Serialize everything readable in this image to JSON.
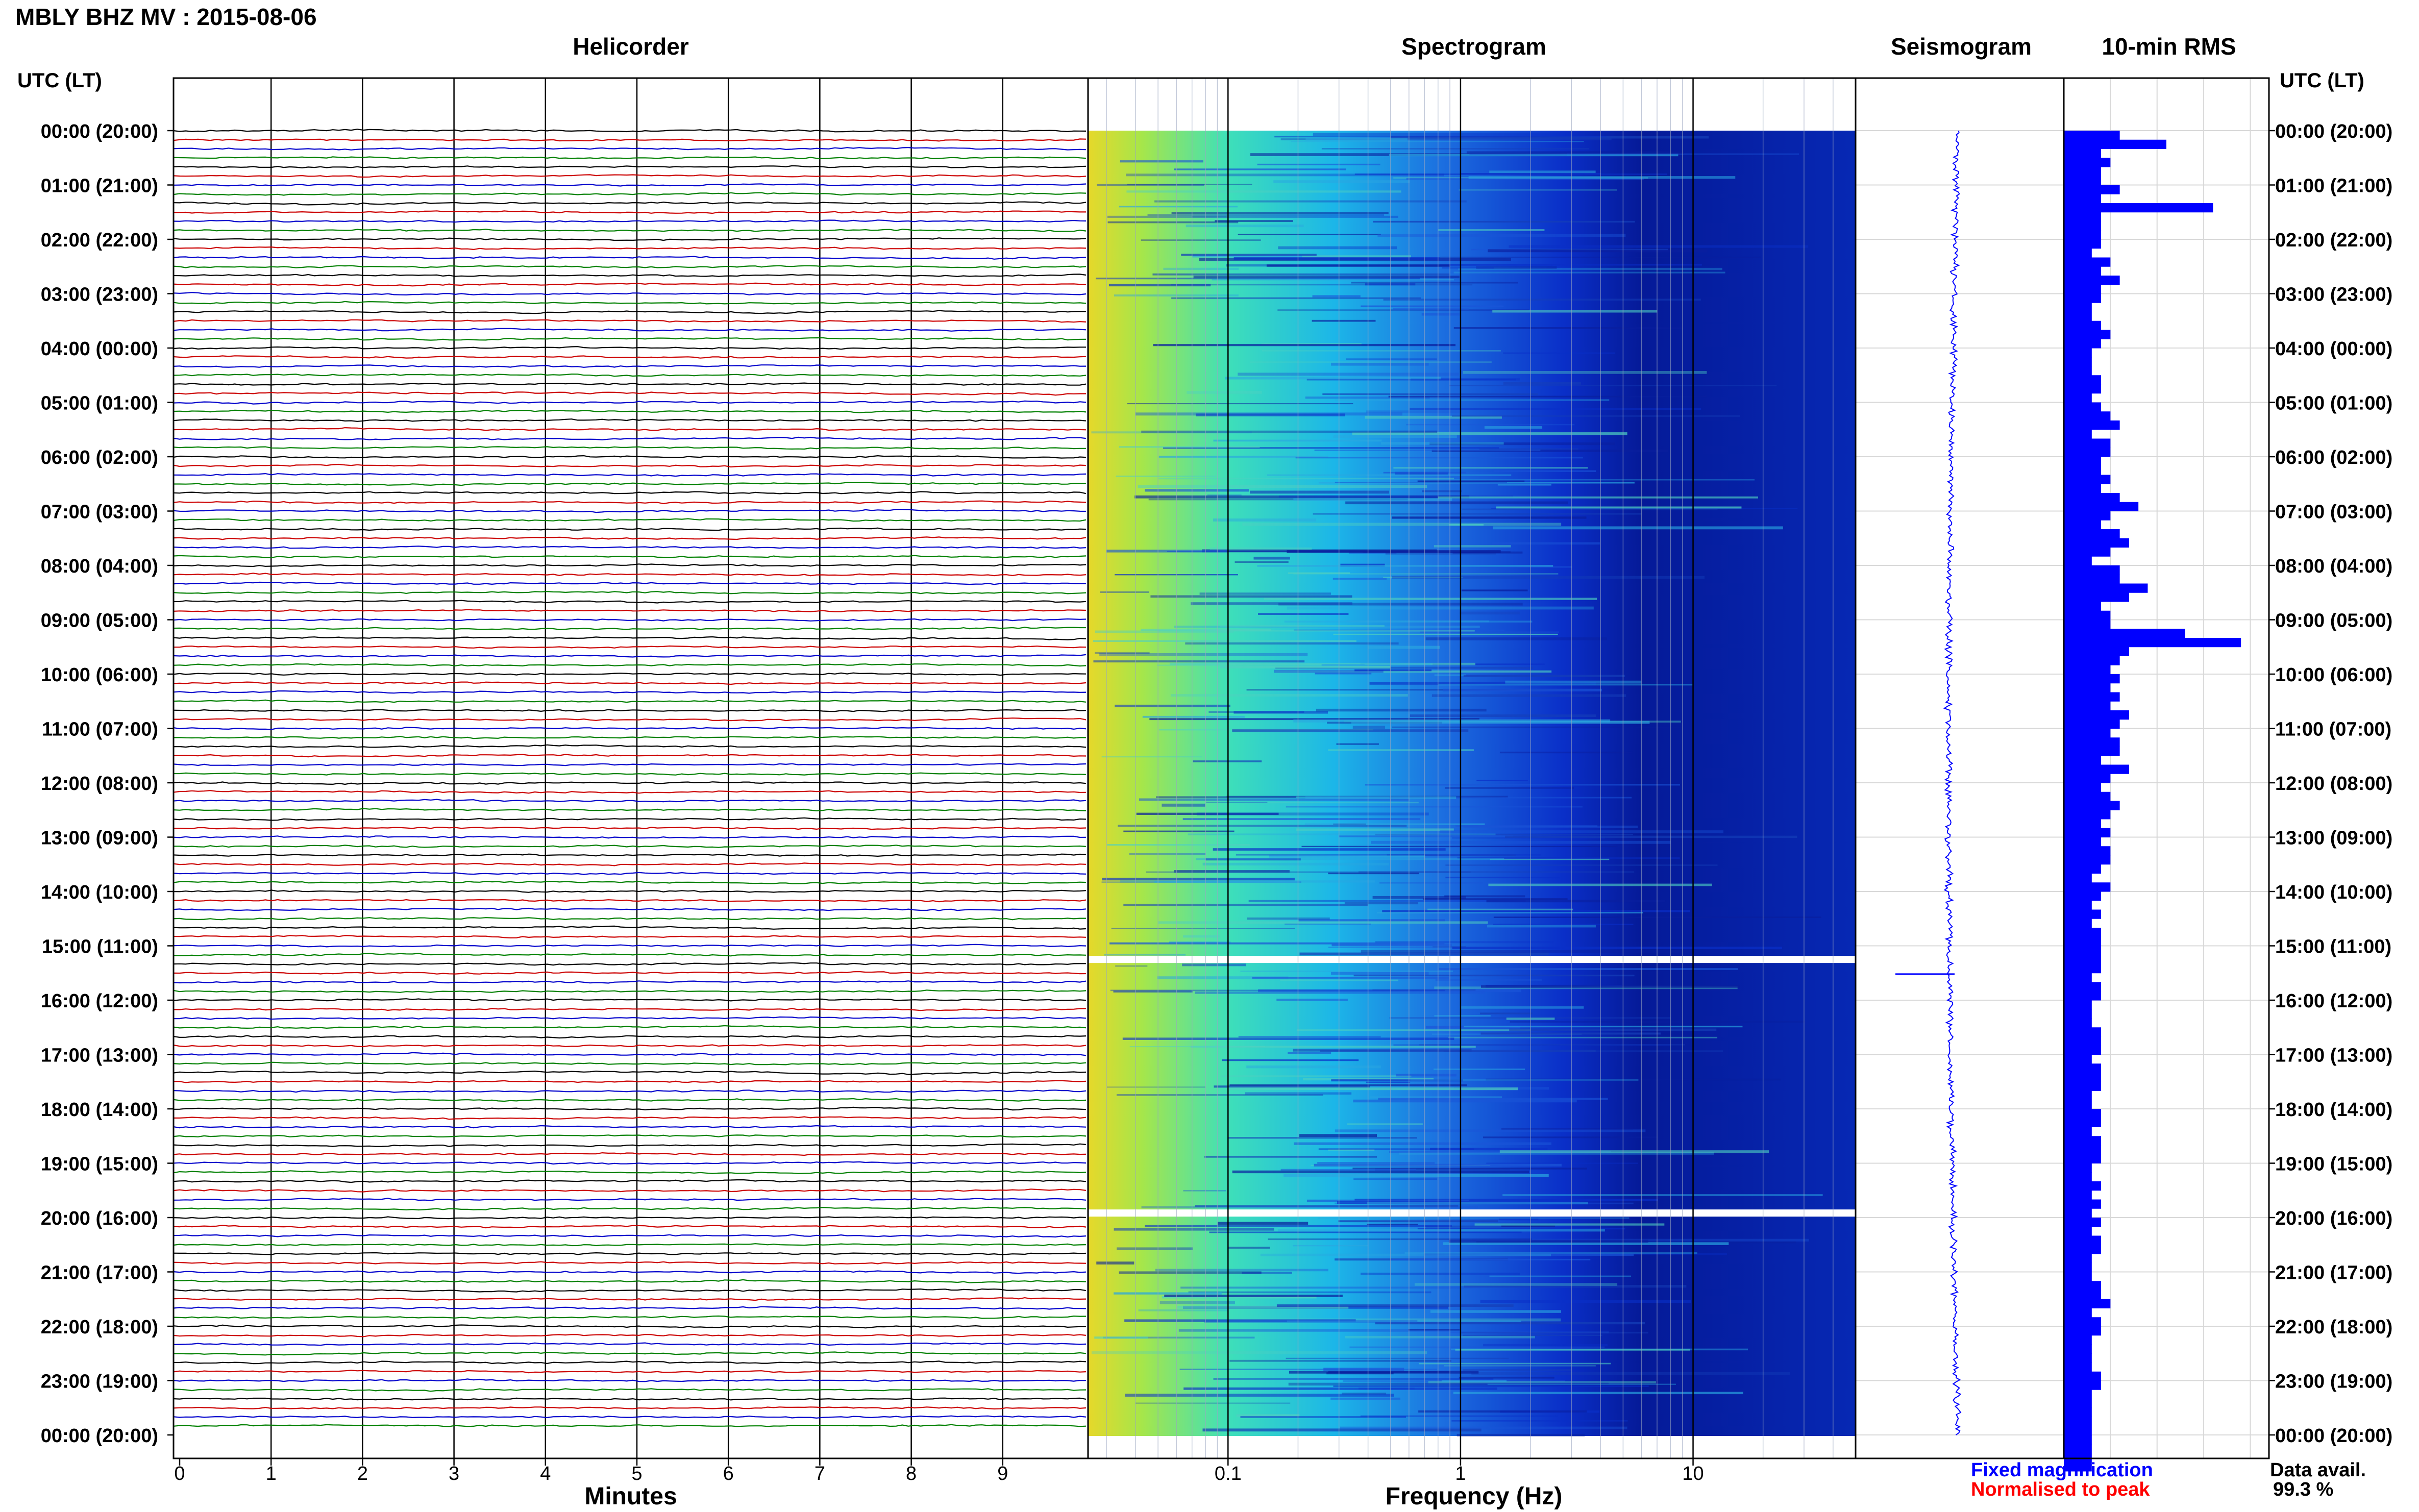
{
  "page": {
    "title": "MBLY BHZ MV : 2015-08-06"
  },
  "panels": {
    "helicorder_title": "Helicorder",
    "spectrogram_title": "Spectrogram",
    "seismogram_title": "Seismogram",
    "rms_title": "10-min RMS"
  },
  "axes": {
    "utc_header_left": "UTC (LT)",
    "utc_header_right": "UTC (LT)",
    "minutes_label": "Minutes",
    "frequency_label": "Frequency (Hz)"
  },
  "legend": {
    "fixed": "Fixed magnification",
    "normalised": "Normalised to peak",
    "data_avail_label": "Data avail.",
    "data_avail_value": "99.3 %"
  },
  "colors": {
    "trace_cycle": [
      "#000000",
      "#cc0000",
      "#0000cc",
      "#008000"
    ],
    "rms_bar": "#0000ff",
    "seismogram": "#0000ff",
    "spectrogram_low": "#00008b",
    "spectrogram_high": "#ffd700"
  },
  "chart_data": [
    {
      "type": "helicorder",
      "title": "Helicorder",
      "xlabel": "Minutes",
      "x_ticks": [
        "0",
        "1",
        "2",
        "3",
        "4",
        "5",
        "6",
        "7",
        "8",
        "9"
      ],
      "xlim": [
        0,
        10
      ],
      "y_ticks": [
        "00:00 (20:00)",
        "01:00 (21:00)",
        "02:00 (22:00)",
        "03:00 (23:00)",
        "04:00 (00:00)",
        "05:00 (01:00)",
        "06:00 (02:00)",
        "07:00 (03:00)",
        "08:00 (04:00)",
        "09:00 (05:00)",
        "10:00 (06:00)",
        "11:00 (07:00)",
        "12:00 (08:00)",
        "13:00 (09:00)",
        "14:00 (10:00)",
        "15:00 (11:00)",
        "16:00 (12:00)",
        "17:00 (13:00)",
        "18:00 (14:00)",
        "19:00 (15:00)",
        "20:00 (16:00)",
        "21:00 (17:00)",
        "22:00 (18:00)",
        "23:00 (19:00)",
        "00:00 (20:00)"
      ],
      "lines_per_hour": 6,
      "grid": true
    },
    {
      "type": "heatmap",
      "title": "Spectrogram",
      "xlabel": "Frequency (Hz)",
      "x_scale": "log",
      "x_ticks": [
        "0.1",
        "1",
        "10"
      ],
      "xlim": [
        0.025,
        50
      ],
      "gaps_utc": [
        "15:15",
        "19:55"
      ]
    },
    {
      "type": "line",
      "title": "Seismogram",
      "grid": true
    },
    {
      "type": "bar",
      "title": "10-min RMS",
      "orientation": "horizontal",
      "values": [
        6,
        11,
        4,
        5,
        4,
        4,
        6,
        4,
        16,
        4,
        4,
        4,
        4,
        3,
        5,
        4,
        6,
        4,
        4,
        3,
        3,
        4,
        5,
        4,
        3,
        3,
        3,
        4,
        4,
        3,
        4,
        5,
        6,
        3,
        5,
        5,
        4,
        4,
        5,
        4,
        6,
        8,
        5,
        4,
        6,
        7,
        5,
        3,
        6,
        6,
        9,
        7,
        4,
        5,
        5,
        13,
        19,
        7,
        6,
        5,
        6,
        5,
        6,
        5,
        7,
        6,
        5,
        6,
        6,
        4,
        7,
        5,
        4,
        5,
        6,
        5,
        4,
        5,
        4,
        5,
        5,
        4,
        3,
        5,
        4,
        3,
        4,
        3,
        4,
        4,
        4,
        4,
        4,
        3,
        4,
        4,
        3,
        3,
        3,
        4,
        4,
        4,
        3,
        4,
        4,
        4,
        3,
        3,
        4,
        4,
        3,
        4,
        4,
        4,
        3,
        3,
        4,
        3,
        4,
        3,
        4,
        3,
        4,
        4,
        3,
        3,
        3,
        4,
        4,
        5,
        3,
        4,
        4,
        3,
        3,
        3,
        3,
        4,
        4,
        3,
        3,
        3,
        3,
        3,
        3,
        3,
        3,
        3
      ],
      "xlim": [
        0,
        22
      ],
      "grid": true
    }
  ]
}
